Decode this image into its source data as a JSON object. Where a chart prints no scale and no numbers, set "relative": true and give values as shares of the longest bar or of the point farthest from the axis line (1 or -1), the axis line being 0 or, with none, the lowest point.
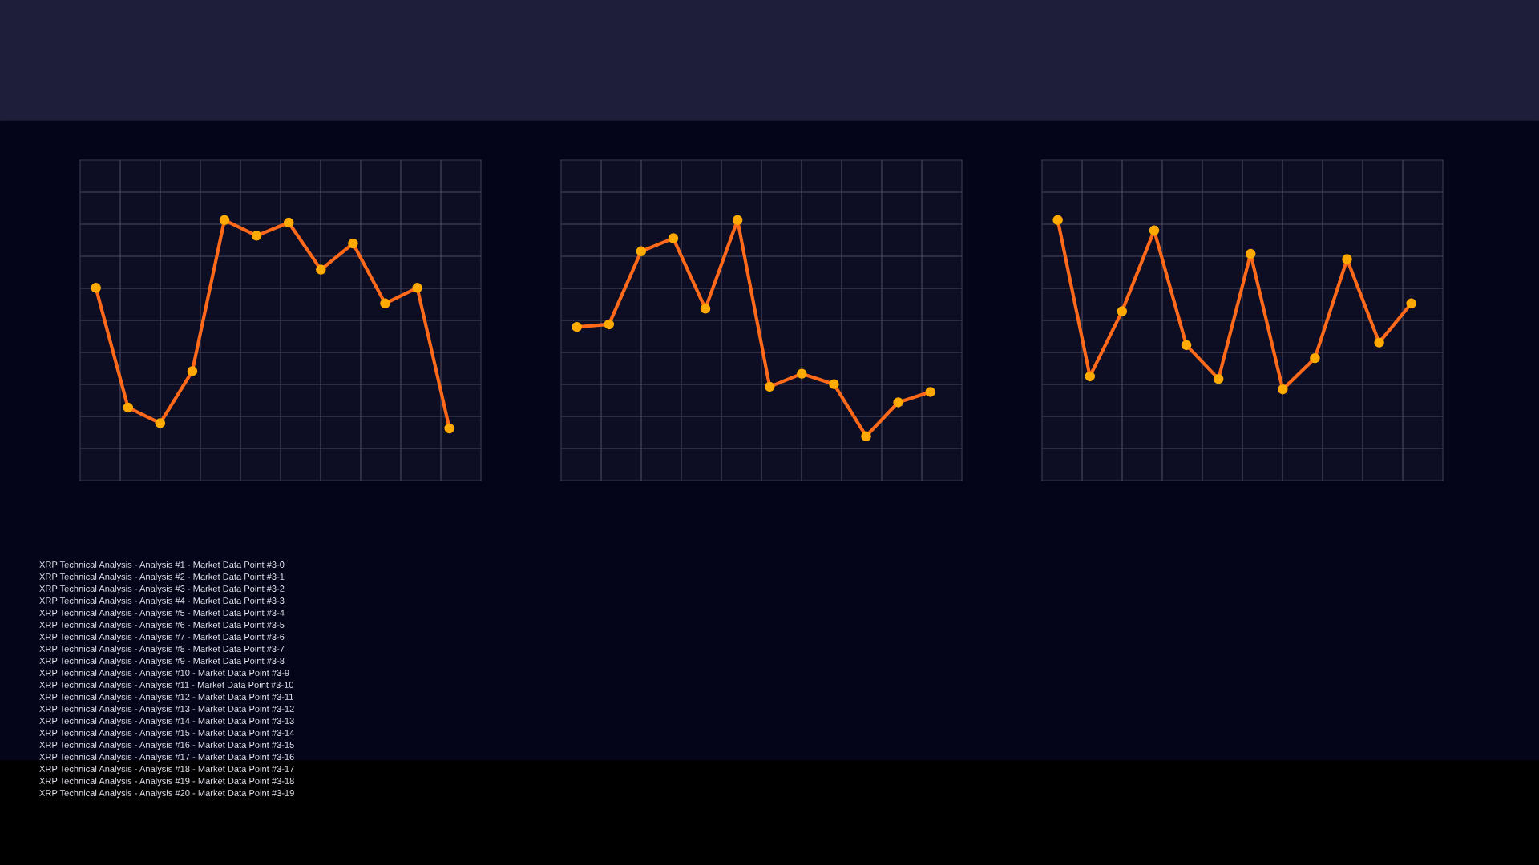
{
  "chart_data": [
    {
      "type": "line",
      "relative": true,
      "categories": [
        null,
        null,
        null,
        null,
        null,
        null,
        null,
        null,
        null,
        null,
        null,
        null
      ],
      "grid": true,
      "tick_labels": false,
      "marker": "circle",
      "line_style": "solid",
      "series": [
        {
          "color": "#ff6a1a",
          "values": [
            0.74,
            0.28,
            0.22,
            0.42,
            1.0,
            0.94,
            0.99,
            0.81,
            0.91,
            0.68,
            0.74,
            0.2
          ]
        }
      ],
      "annotations": [
        "XRP Technical Analysis - Analysis #1 - Market Data Point #3-0",
        "XRP Technical Analysis - Analysis #2 - Market Data Point #3-1",
        "XRP Technical Analysis - Analysis #3 - Market Data Point #3-2",
        "XRP Technical Analysis - Analysis #4 - Market Data Point #3-3",
        "XRP Technical Analysis - Analysis #5 - Market Data Point #3-4",
        "XRP Technical Analysis - Analysis #6 - Market Data Point #3-5",
        "XRP Technical Analysis - Analysis #7 - Market Data Point #3-6",
        "XRP Technical Analysis - Analysis #8 - Market Data Point #3-7",
        "XRP Technical Analysis - Analysis #9 - Market Data Point #3-8",
        "XRP Technical Analysis - Analysis #10 - Market Data Point #3-9",
        "XRP Technical Analysis - Analysis #11 - Market Data Point #3-10",
        "XRP Technical Analysis - Analysis #12 - Market Data Point #3-11",
        "XRP Technical Analysis - Analysis #13 - Market Data Point #3-12",
        "XRP Technical Analysis - Analysis #14 - Market Data Point #3-13",
        "XRP Technical Analysis - Analysis #15 - Market Data Point #3-14",
        "XRP Technical Analysis - Analysis #16 - Market Data Point #3-15",
        "XRP Technical Analysis - Analysis #17 - Market Data Point #3-16",
        "XRP Technical Analysis - Analysis #18 - Market Data Point #3-17",
        "XRP Technical Analysis - Analysis #19 - Market Data Point #3-18",
        "XRP Technical Analysis - Analysis #20 - Market Data Point #3-19"
      ]
    },
    {
      "type": "line",
      "relative": true,
      "categories": [
        null,
        null,
        null,
        null,
        null,
        null,
        null,
        null,
        null,
        null,
        null,
        null
      ],
      "grid": true,
      "tick_labels": false,
      "marker": "circle",
      "line_style": "solid",
      "series": [
        {
          "color": "#ff6a1a",
          "values": [
            0.59,
            0.6,
            0.88,
            0.93,
            0.66,
            1.0,
            0.36,
            0.41,
            0.37,
            0.17,
            0.3,
            0.34
          ]
        }
      ]
    },
    {
      "type": "line",
      "relative": true,
      "categories": [
        null,
        null,
        null,
        null,
        null,
        null,
        null,
        null,
        null,
        null,
        null,
        null
      ],
      "grid": true,
      "tick_labels": false,
      "marker": "circle",
      "line_style": "solid",
      "series": [
        {
          "color": "#ff6a1a",
          "values": [
            1.0,
            0.4,
            0.65,
            0.96,
            0.52,
            0.39,
            0.87,
            0.35,
            0.47,
            0.85,
            0.53,
            0.68
          ]
        }
      ]
    }
  ]
}
